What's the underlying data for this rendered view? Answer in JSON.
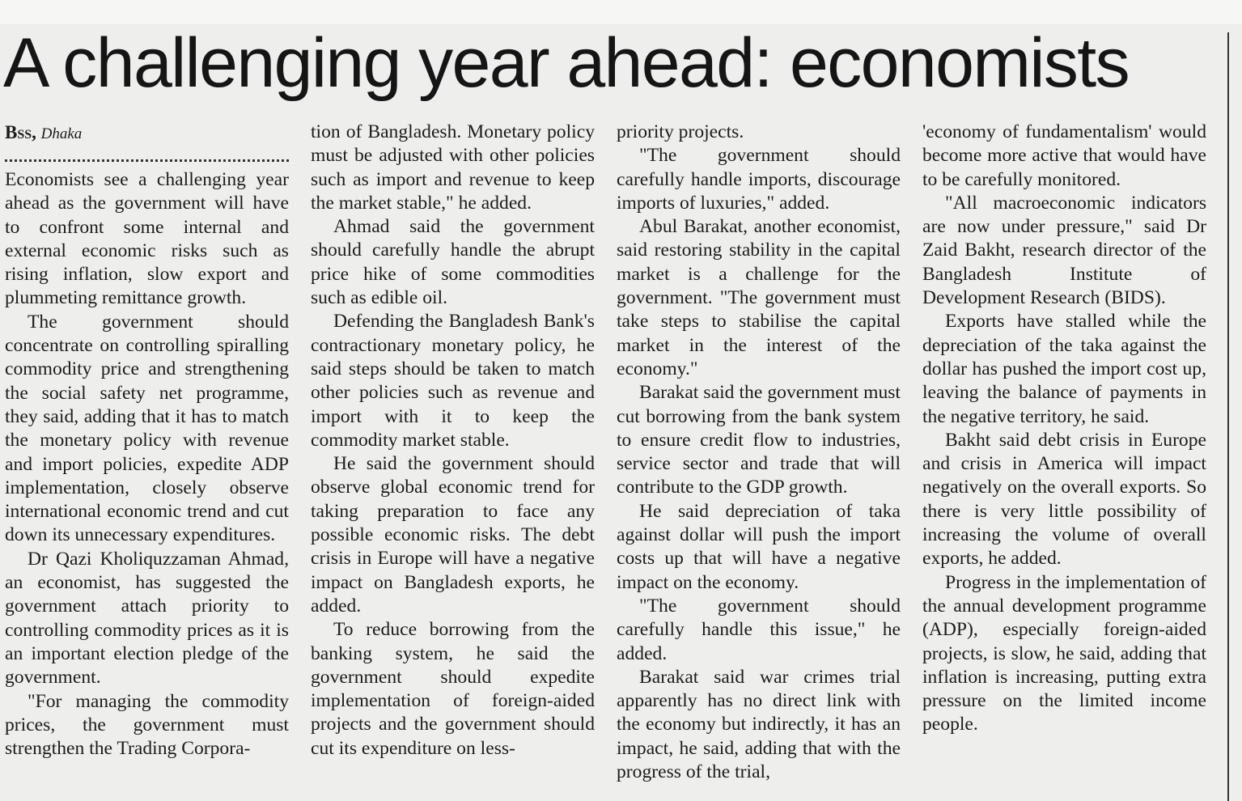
{
  "article": {
    "headline": "A challenging year ahead: economists",
    "byline_agency": "Bss,",
    "byline_place": "Dhaka",
    "columns": [
      [
        {
          "indent": false,
          "text": "Economists see a challenging year ahead as the government will have to confront some internal and external economic risks such as rising inflation, slow export and plummeting remittance growth."
        },
        {
          "indent": true,
          "text": "The government should concentrate on controlling spiralling commodity price and strengthening the social safety net programme, they said, adding that it has to match the monetary policy with revenue and import policies, expedite ADP implementation, closely observe international economic trend and cut down its unnecessary expenditures."
        },
        {
          "indent": true,
          "text": "Dr Qazi Kholiquzzaman Ahmad, an economist, has suggested the government attach priority to controlling commodity prices as it is an important election pledge of the government."
        },
        {
          "indent": true,
          "text": "\"For managing the commodity prices, the government must strengthen the Trading Corpora-"
        }
      ],
      [
        {
          "indent": false,
          "text": "tion of Bangladesh. Monetary policy must be adjusted with other policies such as import and revenue to keep the market stable,\" he added."
        },
        {
          "indent": true,
          "text": "Ahmad said the government should carefully handle the abrupt price hike of some commodities such as edible oil."
        },
        {
          "indent": true,
          "text": "Defending the Bangladesh Bank's contractionary monetary policy, he said steps should be taken to match other policies such as revenue and import with it to keep the commodity market stable."
        },
        {
          "indent": true,
          "text": "He said the government should observe global economic trend for taking preparation to face any possible economic risks. The debt crisis in Europe will have a negative impact on Bangladesh exports, he added."
        },
        {
          "indent": true,
          "text": "To reduce borrowing from the banking system, he said the government should expedite implementation of foreign-aided projects and the government should cut its expenditure on less-"
        }
      ],
      [
        {
          "indent": false,
          "text": "priority projects."
        },
        {
          "indent": true,
          "text": "\"The government should carefully handle imports, discourage imports of luxuries,\" added."
        },
        {
          "indent": true,
          "text": "Abul Barakat, another economist, said restoring stability in the capital market is a challenge for the government. \"The government must take steps to stabilise the capital market in the interest of the economy.\""
        },
        {
          "indent": true,
          "text": "Barakat said the government must cut borrowing from the bank system to ensure credit flow to industries, service sector and trade that will contribute to the GDP growth."
        },
        {
          "indent": true,
          "text": "He said depreciation of taka against dollar will push the import costs up that will have a negative impact on the economy."
        },
        {
          "indent": true,
          "text": "\"The government should carefully handle this issue,\" he added."
        },
        {
          "indent": true,
          "text": "Barakat said war crimes trial apparently has no direct link with the economy but indirectly, it has an impact, he said, adding that with the progress of the trial,"
        }
      ],
      [
        {
          "indent": false,
          "text": "'economy of fundamentalism' would become more active that would have to be carefully monitored."
        },
        {
          "indent": true,
          "text": "\"All macroeconomic indicators are now under pressure,\" said Dr Zaid Bakht, research director of the Bangladesh Institute of Development Research (BIDS)."
        },
        {
          "indent": true,
          "text": "Exports have stalled while the depreciation of the taka against the dollar has pushed the import cost up, leaving the balance of payments in the negative territory, he said."
        },
        {
          "indent": true,
          "text": "Bakht said debt crisis in Europe and crisis in America will impact negatively on the overall exports. So there is very little possibility of increasing the volume of overall exports, he added."
        },
        {
          "indent": true,
          "text": "Progress in the implementation of the annual development programme (ADP), especially foreign-aided projects, is slow, he said, adding that inflation is increasing, putting extra pressure on the limited income people."
        }
      ]
    ]
  }
}
